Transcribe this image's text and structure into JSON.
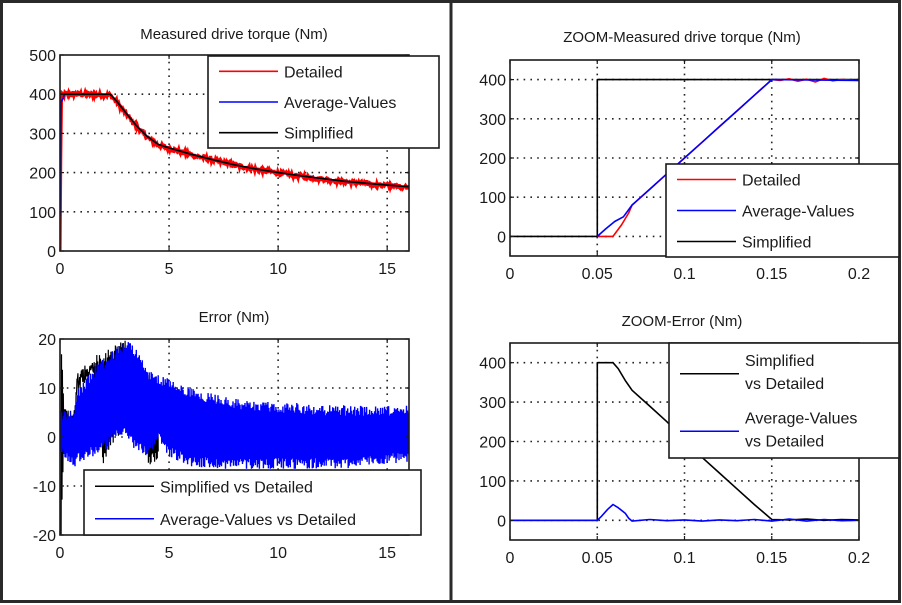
{
  "figure": {
    "panel_count": 4,
    "colors": {
      "detailed": "#ff0000",
      "average_values": "#0000ff",
      "simplified": "#000000",
      "grid": "#222222",
      "frame": "#2a2a2a"
    }
  },
  "chart_data": [
    {
      "id": "measured-torque",
      "type": "line",
      "title": "Measured drive torque (Nm)",
      "xlabel": "",
      "ylabel": "",
      "xlim": [
        0,
        16
      ],
      "ylim": [
        0,
        500
      ],
      "xticks": [
        0,
        5,
        10,
        15
      ],
      "xtick_labels": [
        "0",
        "5",
        "10",
        "15"
      ],
      "yticks": [
        0,
        100,
        200,
        300,
        400,
        500
      ],
      "ytick_labels": [
        "0",
        "100",
        "200",
        "300",
        "400",
        "500"
      ],
      "grid": true,
      "legend_position": "top-right",
      "legend": [
        "Detailed",
        "Average-Values",
        "Simplified"
      ],
      "series": [
        {
          "name": "Detailed",
          "color": "#ff0000",
          "style": "noisy-band",
          "noise": 6,
          "x": [
            0,
            0.05,
            0.1,
            0.2,
            0.5,
            1.0,
            1.5,
            2.0,
            2.3,
            2.6,
            3.0,
            3.5,
            4.0,
            4.5,
            5.0,
            6,
            7,
            8,
            9,
            10,
            11,
            12,
            13,
            14,
            15,
            16
          ],
          "y": [
            0,
            380,
            398,
            400,
            400,
            400,
            399,
            398,
            397,
            380,
            352,
            318,
            290,
            270,
            262,
            246,
            232,
            219,
            208,
            199,
            191,
            184,
            177,
            172,
            167,
            163
          ]
        },
        {
          "name": "Average-Values",
          "color": "#0000ff",
          "style": "line",
          "x": [
            0,
            0.05,
            0.15,
            0.2,
            0.3,
            1.0,
            2.0,
            2.3,
            2.6,
            3.0,
            3.5,
            4.0,
            4.5,
            5.0,
            6,
            7,
            8,
            9,
            10,
            11,
            12,
            13,
            14,
            15,
            16
          ],
          "y": [
            90,
            380,
            390,
            400,
            400,
            400,
            400,
            400,
            382,
            354,
            320,
            292,
            272,
            263,
            247,
            233,
            220,
            209,
            200,
            192,
            185,
            178,
            173,
            168,
            164
          ]
        },
        {
          "name": "Simplified",
          "color": "#000000",
          "style": "line",
          "x": [
            0.05,
            0.15,
            0.5,
            1.0,
            2.0,
            2.3,
            2.6,
            3.0,
            3.5,
            4.0,
            4.5,
            5.0,
            6,
            7,
            8,
            9,
            10,
            11,
            12,
            13,
            14,
            15,
            16
          ],
          "y": [
            400,
            400,
            400,
            400,
            400,
            400,
            382,
            354,
            320,
            292,
            272,
            263,
            247,
            233,
            220,
            209,
            200,
            192,
            185,
            178,
            173,
            168,
            164
          ]
        }
      ]
    },
    {
      "id": "zoom-measured-torque",
      "type": "line",
      "title": "ZOOM-Measured drive torque (Nm)",
      "xlabel": "",
      "ylabel": "",
      "xlim": [
        0,
        0.2
      ],
      "ylim": [
        -50,
        450
      ],
      "xticks": [
        0,
        0.05,
        0.1,
        0.15,
        0.2
      ],
      "xtick_labels": [
        "0",
        "0.05",
        "0.1",
        "0.15",
        "0.2"
      ],
      "yticks": [
        0,
        100,
        200,
        300,
        400
      ],
      "ytick_labels": [
        "0",
        "100",
        "200",
        "300",
        "400"
      ],
      "grid": true,
      "legend_position": "bottom-right",
      "legend": [
        "Detailed",
        "Average-Values",
        "Simplified"
      ],
      "series": [
        {
          "name": "Simplified",
          "color": "#000000",
          "style": "line",
          "x": [
            0,
            0.05,
            0.05,
            0.2
          ],
          "y": [
            0,
            0,
            400,
            400
          ]
        },
        {
          "name": "Detailed",
          "color": "#ff0000",
          "style": "line",
          "x": [
            0.05,
            0.052,
            0.059,
            0.064,
            0.068,
            0.07,
            0.08,
            0.09,
            0.1,
            0.11,
            0.12,
            0.13,
            0.14,
            0.15,
            0.155,
            0.16,
            0.165,
            0.17,
            0.175,
            0.18,
            0.185,
            0.19,
            0.2
          ],
          "y": [
            0,
            0,
            0,
            30,
            60,
            80,
            120,
            160,
            200,
            240,
            280,
            320,
            360,
            400,
            398,
            402,
            396,
            401,
            394,
            403,
            397,
            400,
            398
          ]
        },
        {
          "name": "Average-Values",
          "color": "#0000ff",
          "style": "line",
          "x": [
            0.05,
            0.055,
            0.06,
            0.065,
            0.07,
            0.08,
            0.09,
            0.1,
            0.11,
            0.12,
            0.13,
            0.14,
            0.15,
            0.2
          ],
          "y": [
            0,
            20,
            38,
            50,
            80,
            120,
            160,
            200,
            240,
            280,
            320,
            360,
            400,
            398
          ]
        }
      ]
    },
    {
      "id": "error",
      "type": "line",
      "title": "Error (Nm)",
      "xlabel": "",
      "ylabel": "",
      "xlim": [
        0,
        16
      ],
      "ylim": [
        -20,
        20
      ],
      "xticks": [
        0,
        5,
        10,
        15
      ],
      "xtick_labels": [
        "0",
        "5",
        "10",
        "15"
      ],
      "yticks": [
        -20,
        -10,
        0,
        10,
        20
      ],
      "ytick_labels": [
        "-20",
        "-10",
        "0",
        "10",
        "20"
      ],
      "grid": true,
      "legend_position": "bottom",
      "legend": [
        "Simplified vs Detailed",
        "Average-Values vs Detailed"
      ],
      "series": [
        {
          "name": "Simplified vs Detailed",
          "color": "#000000",
          "style": "noisy-band-outline",
          "x": [
            0.05,
            0.2,
            0.5,
            0.7,
            0.8,
            1.0,
            1.5,
            2.0,
            2.5,
            3.0,
            3.3,
            3.6,
            4.0,
            4.2,
            4.5
          ],
          "upper": [
            20,
            5,
            4,
            5,
            12,
            13,
            16,
            18,
            19,
            20,
            18,
            15,
            13,
            12,
            12
          ],
          "lower": [
            -20,
            3,
            3,
            4,
            11,
            11,
            13,
            -6,
            -1,
            2,
            2,
            -1,
            -5,
            -6,
            -5
          ]
        },
        {
          "name": "Average-Values vs Detailed",
          "color": "#0000ff",
          "style": "filled-band",
          "x": [
            0,
            0.3,
            0.7,
            0.8,
            1.0,
            1.5,
            2.0,
            2.5,
            3.0,
            3.2,
            3.5,
            4.0,
            4.5,
            5.0,
            6,
            7,
            8,
            9,
            10,
            11,
            12,
            13,
            14,
            15,
            16
          ],
          "upper": [
            6,
            5,
            6,
            10,
            11,
            14,
            16,
            18,
            19.5,
            20,
            18,
            14,
            13,
            12,
            10,
            9,
            8,
            7.5,
            7,
            7,
            6.5,
            6.5,
            6.5,
            6.5,
            6.5
          ],
          "lower": [
            -4,
            -5,
            -6,
            -5,
            -5,
            -4,
            -3,
            -1,
            0,
            -1,
            -3,
            -4,
            -1,
            -4,
            -6,
            -6.5,
            -6.5,
            -6.5,
            -6.5,
            -6.5,
            -6.5,
            -6.5,
            -6,
            -5.5,
            -5.5
          ]
        }
      ]
    },
    {
      "id": "zoom-error",
      "type": "line",
      "title": "ZOOM-Error (Nm)",
      "xlabel": "",
      "ylabel": "",
      "xlim": [
        0,
        0.2
      ],
      "ylim": [
        -50,
        450
      ],
      "xticks": [
        0,
        0.05,
        0.1,
        0.15,
        0.2
      ],
      "xtick_labels": [
        "0",
        "0.05",
        "0.1",
        "0.15",
        "0.2"
      ],
      "yticks": [
        0,
        100,
        200,
        300,
        400
      ],
      "ytick_labels": [
        "0",
        "100",
        "200",
        "300",
        "400"
      ],
      "grid": true,
      "legend_position": "top-right",
      "legend": [
        "Simplified\nvs Detailed",
        "Average-Values\nvs Detailed"
      ],
      "series": [
        {
          "name": "Simplified vs Detailed",
          "color": "#000000",
          "style": "line",
          "x": [
            0,
            0.05,
            0.05,
            0.059,
            0.062,
            0.066,
            0.07,
            0.08,
            0.09,
            0.1,
            0.11,
            0.12,
            0.13,
            0.14,
            0.15,
            0.16,
            0.17,
            0.18,
            0.19,
            0.2
          ],
          "y": [
            0,
            0,
            400,
            400,
            385,
            355,
            330,
            290,
            250,
            205,
            160,
            120,
            80,
            40,
            2,
            1,
            3,
            0,
            2,
            1
          ]
        },
        {
          "name": "Average-Values vs Detailed",
          "color": "#0000ff",
          "style": "line",
          "x": [
            0,
            0.05,
            0.052,
            0.056,
            0.059,
            0.062,
            0.066,
            0.068,
            0.07,
            0.08,
            0.09,
            0.1,
            0.11,
            0.12,
            0.13,
            0.14,
            0.15,
            0.16,
            0.17,
            0.18,
            0.19,
            0.2
          ],
          "y": [
            0,
            0,
            8,
            28,
            40,
            32,
            18,
            5,
            -2,
            2,
            -1,
            1,
            -2,
            1,
            -1,
            2,
            -2,
            3,
            -2,
            2,
            -1,
            0
          ]
        }
      ]
    }
  ]
}
